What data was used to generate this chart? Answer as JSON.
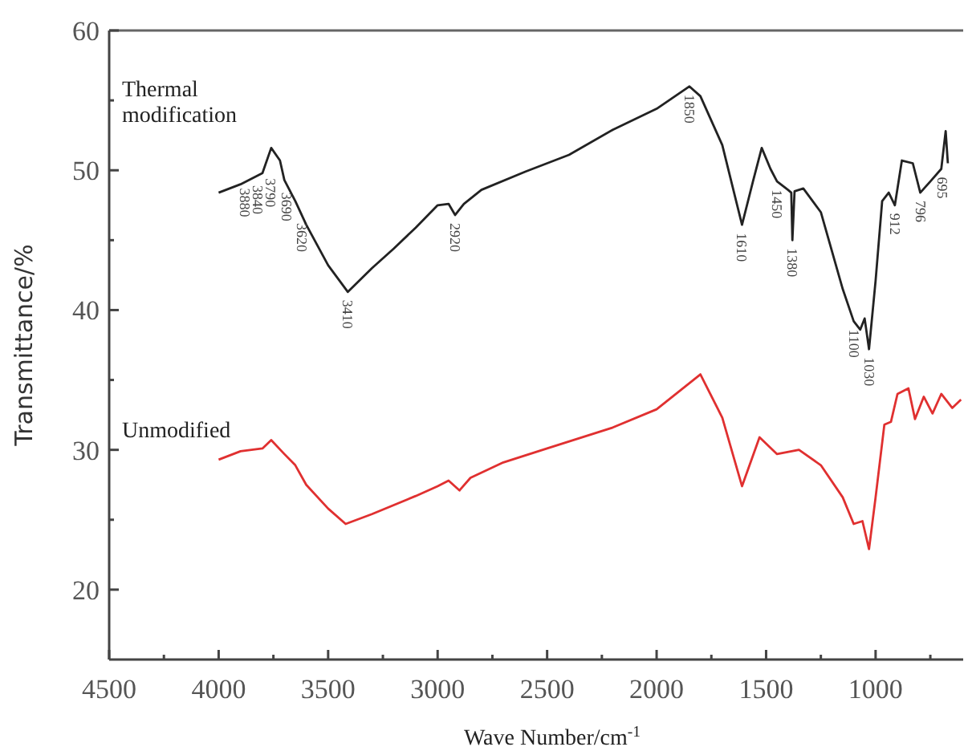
{
  "chart_data": {
    "type": "line",
    "xlabel": "Wave Number/cm$^{-1}$",
    "ylabel": "Transmittance/%",
    "xlim": [
      4500,
      600
    ],
    "ylim": [
      15,
      60
    ],
    "xticks": [
      4500,
      {
        "value": 4250,
        "label": null
      },
      4000,
      {
        "value": 3750,
        "label": null
      },
      3500,
      {
        "value": 3250,
        "label": null
      },
      3000,
      {
        "value": 2750,
        "label": null
      },
      2500,
      {
        "value": 2250,
        "label": null
      },
      2000,
      {
        "value": 1750,
        "label": null
      },
      1500,
      {
        "value": 1250,
        "label": null
      },
      1000,
      {
        "value": 750,
        "label": null
      }
    ],
    "yticks": [
      20,
      {
        "value": 25,
        "label": null
      },
      30,
      {
        "value": 35,
        "label": null
      },
      40,
      {
        "value": 45,
        "label": null
      },
      50,
      {
        "value": 55,
        "label": null
      },
      60
    ],
    "marker": "none",
    "line_style": "solid",
    "series": [
      {
        "name": "Thermal modification",
        "color": "#222222",
        "x": [
          4000,
          3900,
          3800,
          3760,
          3720,
          3700,
          3650,
          3600,
          3500,
          3410,
          3300,
          3200,
          3100,
          3000,
          2950,
          2920,
          2880,
          2800,
          2600,
          2400,
          2200,
          2000,
          1850,
          1800,
          1700,
          1610,
          1560,
          1520,
          1480,
          1450,
          1400,
          1385,
          1380,
          1370,
          1330,
          1250,
          1150,
          1100,
          1070,
          1050,
          1030,
          1000,
          970,
          940,
          912,
          880,
          830,
          796,
          750,
          700,
          680,
          670
        ],
        "values": [
          48.4,
          49.0,
          49.8,
          51.6,
          50.7,
          49.3,
          47.8,
          46.1,
          43.2,
          41.3,
          43.0,
          44.4,
          45.9,
          47.5,
          47.6,
          46.8,
          47.6,
          48.6,
          49.9,
          51.1,
          52.9,
          54.4,
          56.0,
          55.3,
          51.8,
          46.1,
          49.2,
          51.6,
          50.1,
          49.2,
          48.6,
          48.4,
          45.0,
          48.5,
          48.7,
          47.0,
          41.5,
          39.2,
          38.6,
          39.4,
          37.2,
          42.1,
          47.8,
          48.4,
          47.5,
          50.7,
          50.5,
          48.4,
          49.2,
          50.1,
          52.8,
          50.5
        ]
      },
      {
        "name": "Unmodified",
        "color": "#e03030",
        "x": [
          4000,
          3900,
          3800,
          3760,
          3700,
          3650,
          3600,
          3500,
          3420,
          3300,
          3100,
          3000,
          2950,
          2900,
          2850,
          2700,
          2500,
          2200,
          2000,
          1800,
          1700,
          1610,
          1530,
          1450,
          1350,
          1250,
          1150,
          1100,
          1060,
          1030,
          1000,
          960,
          930,
          900,
          850,
          820,
          780,
          740,
          700,
          650,
          610
        ],
        "values": [
          29.3,
          29.9,
          30.1,
          30.7,
          29.7,
          28.9,
          27.5,
          25.8,
          24.7,
          25.4,
          26.7,
          27.4,
          27.8,
          27.1,
          28.0,
          29.1,
          30.1,
          31.6,
          32.9,
          35.4,
          32.3,
          27.4,
          30.9,
          29.7,
          30.0,
          28.9,
          26.6,
          24.7,
          24.9,
          22.9,
          26.6,
          31.8,
          32.0,
          34.0,
          34.4,
          32.2,
          33.8,
          32.6,
          34.0,
          33.0,
          33.6
        ]
      }
    ],
    "annotations": [
      {
        "text": "3880",
        "x": 3880,
        "y": 49.3
      },
      {
        "text": "3840",
        "x": 3840,
        "y": 49.5
      },
      {
        "text": "3790",
        "x": 3790,
        "y": 50.0
      },
      {
        "text": "3690",
        "x": 3690,
        "y": 49.0
      },
      {
        "text": "3620",
        "x": 3620,
        "y": 46.8
      },
      {
        "text": "3410",
        "x": 3410,
        "y": 41.3
      },
      {
        "text": "2920",
        "x": 2920,
        "y": 46.8
      },
      {
        "text": "1850",
        "x": 1850,
        "y": 56.0
      },
      {
        "text": "1610",
        "x": 1610,
        "y": 46.1
      },
      {
        "text": "1450",
        "x": 1450,
        "y": 49.2
      },
      {
        "text": "1380",
        "x": 1380,
        "y": 45.0
      },
      {
        "text": "1100",
        "x": 1100,
        "y": 39.2
      },
      {
        "text": "1030",
        "x": 1030,
        "y": 37.2
      },
      {
        "text": "912",
        "x": 912,
        "y": 47.5
      },
      {
        "text": "796",
        "x": 796,
        "y": 48.4
      },
      {
        "text": "695",
        "x": 695,
        "y": 50.1
      }
    ]
  }
}
